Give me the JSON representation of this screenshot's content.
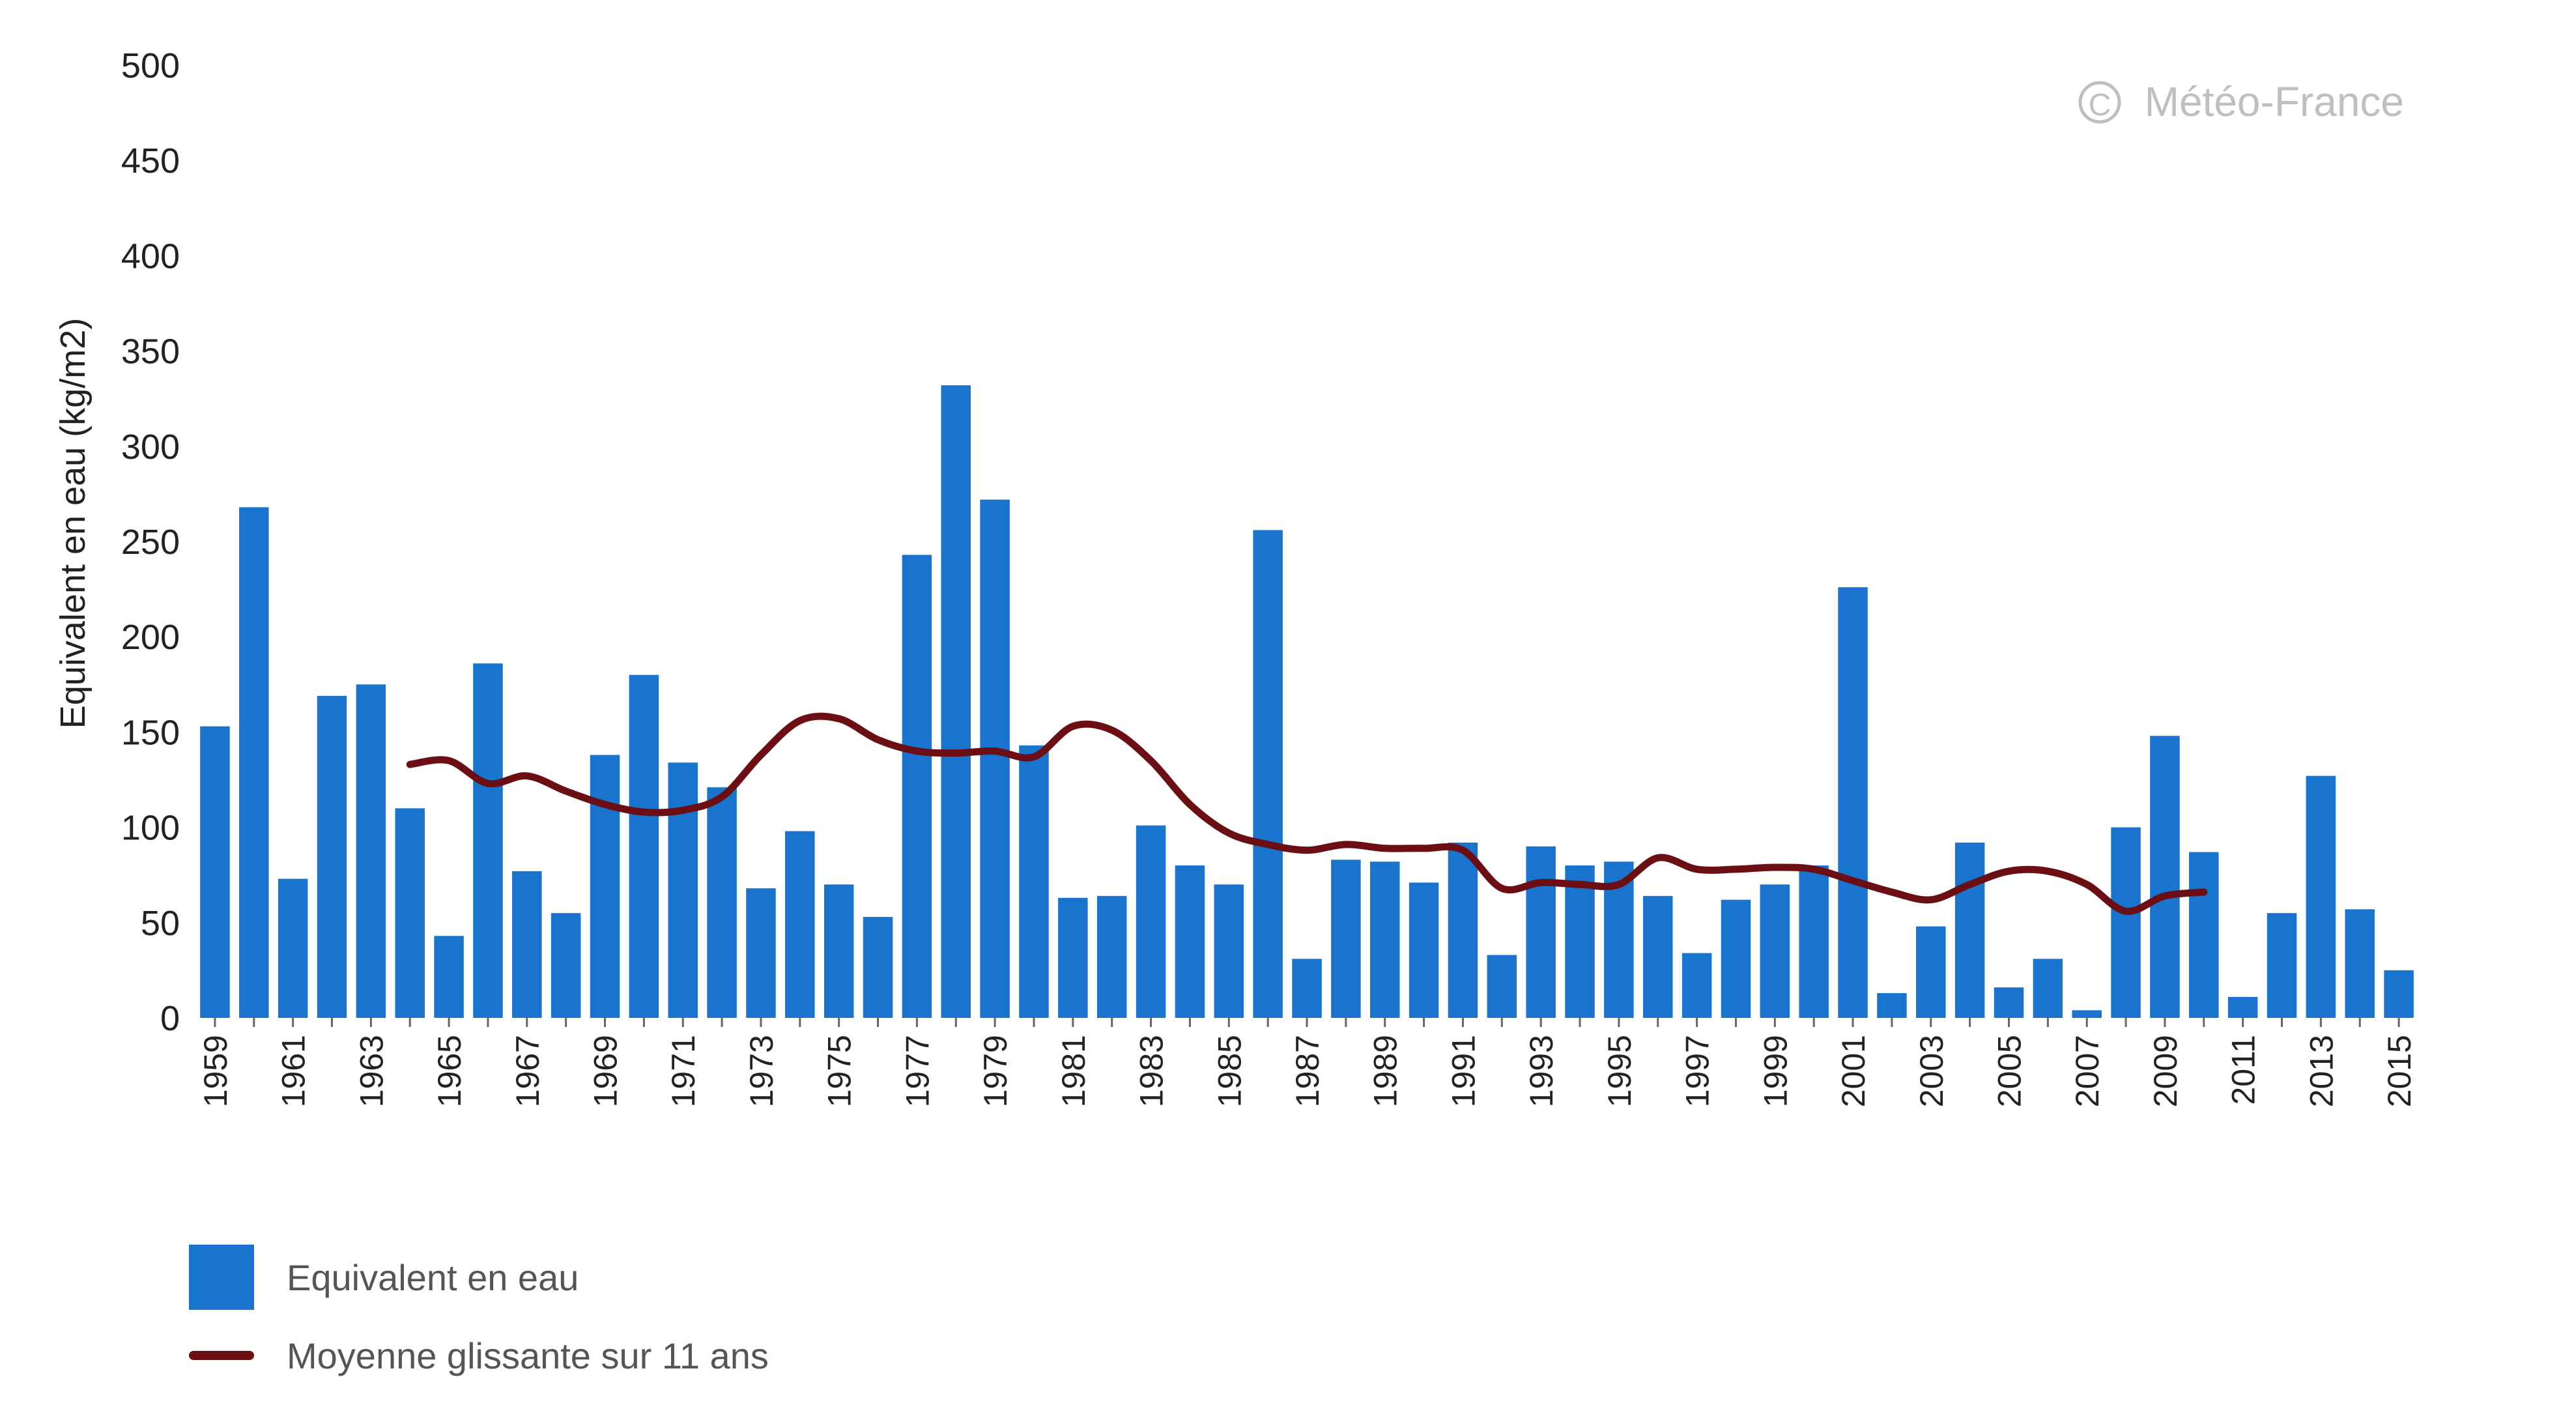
{
  "colors": {
    "bar": "#1874cd",
    "line": "#6b0f14",
    "axis_text": "#222222",
    "watermark": "#bfbfbf"
  },
  "watermark": "Météo-France",
  "legend": {
    "bar_label": "Equivalent en eau",
    "line_label": "Moyenne glissante sur 11 ans"
  },
  "chart_data": {
    "type": "bar",
    "ylabel": "Equivalent en eau (kg/m2)",
    "xlabel": "",
    "ylim": [
      0,
      500
    ],
    "yticks": [
      0,
      50,
      100,
      150,
      200,
      250,
      300,
      350,
      400,
      450,
      500
    ],
    "xticks": [
      "1959",
      "1961",
      "1963",
      "1965",
      "1967",
      "1969",
      "1971",
      "1973",
      "1975",
      "1977",
      "1979",
      "1981",
      "1983",
      "1985",
      "1987",
      "1989",
      "1991",
      "1993",
      "1995",
      "1997",
      "1999",
      "2001",
      "2003",
      "2005",
      "2007",
      "2009",
      "2011",
      "2013",
      "2015"
    ],
    "grid": false,
    "legend_position": "bottom-left",
    "categories": [
      "1959",
      "1960",
      "1961",
      "1962",
      "1963",
      "1964",
      "1965",
      "1966",
      "1967",
      "1968",
      "1969",
      "1970",
      "1971",
      "1972",
      "1973",
      "1974",
      "1975",
      "1976",
      "1977",
      "1978",
      "1979",
      "1980",
      "1981",
      "1982",
      "1983",
      "1984",
      "1985",
      "1986",
      "1987",
      "1988",
      "1989",
      "1990",
      "1991",
      "1992",
      "1993",
      "1994",
      "1995",
      "1996",
      "1997",
      "1998",
      "1999",
      "2000",
      "2001",
      "2002",
      "2003",
      "2004",
      "2005",
      "2006",
      "2007",
      "2008",
      "2009",
      "2010",
      "2011",
      "2012",
      "2013",
      "2014",
      "2015"
    ],
    "series": [
      {
        "name": "Equivalent en eau",
        "type": "bar",
        "values": [
          153,
          268,
          73,
          169,
          175,
          110,
          43,
          186,
          77,
          55,
          138,
          180,
          134,
          121,
          68,
          98,
          70,
          53,
          243,
          332,
          272,
          143,
          63,
          64,
          101,
          80,
          70,
          256,
          31,
          83,
          82,
          71,
          92,
          33,
          90,
          80,
          82,
          64,
          34,
          62,
          70,
          80,
          226,
          13,
          48,
          92,
          16,
          31,
          4,
          100,
          148,
          87,
          11,
          55,
          127,
          57,
          25
        ]
      },
      {
        "name": "Moyenne glissante sur 11 ans",
        "type": "line",
        "x": [
          "1964",
          "1965",
          "1966",
          "1967",
          "1968",
          "1969",
          "1970",
          "1971",
          "1972",
          "1973",
          "1974",
          "1975",
          "1976",
          "1977",
          "1978",
          "1979",
          "1980",
          "1981",
          "1982",
          "1983",
          "1984",
          "1985",
          "1986",
          "1987",
          "1988",
          "1989",
          "1990",
          "1991",
          "1992",
          "1993",
          "1994",
          "1995",
          "1996",
          "1997",
          "1998",
          "1999",
          "2000",
          "2001",
          "2002",
          "2003",
          "2004",
          "2005",
          "2006",
          "2007",
          "2008",
          "2009",
          "2010"
        ],
        "values": [
          133,
          135,
          123,
          127,
          119,
          112,
          108,
          109,
          116,
          138,
          156,
          157,
          146,
          140,
          139,
          140,
          137,
          153,
          151,
          135,
          112,
          97,
          91,
          88,
          91,
          89,
          89,
          88,
          68,
          71,
          70,
          70,
          84,
          78,
          78,
          79,
          78,
          72,
          66,
          62,
          70,
          77,
          77,
          70,
          56,
          64,
          66
        ]
      }
    ]
  }
}
